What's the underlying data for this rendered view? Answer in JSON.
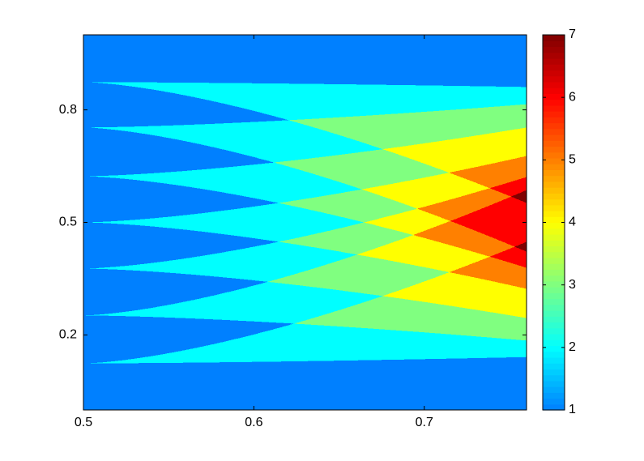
{
  "chart_data": {
    "type": "contourf",
    "colormap": "jet",
    "xlim": [
      0.5,
      0.76
    ],
    "ylim": [
      0,
      1
    ],
    "xticks": [
      0.5,
      0.6,
      0.7
    ],
    "yticks": [
      0.2,
      0.5,
      0.8
    ],
    "clim": [
      1,
      7
    ],
    "cticks": [
      1,
      2,
      3,
      4,
      5,
      6,
      7
    ],
    "wedges": [
      {
        "apex": 0.874,
        "upper": 0.861,
        "lower": 0.552
      },
      {
        "apex": 0.753,
        "upper": 0.815,
        "lower": 0.422
      },
      {
        "apex": 0.623,
        "upper": 0.753,
        "lower": 0.379
      },
      {
        "apex": 0.5,
        "upper": 0.677,
        "lower": 0.323
      },
      {
        "apex": 0.377,
        "upper": 0.621,
        "lower": 0.245
      },
      {
        "apex": 0.252,
        "upper": 0.586,
        "lower": 0.185
      },
      {
        "apex": 0.124,
        "upper": 0.448,
        "lower": 0.141
      }
    ]
  }
}
